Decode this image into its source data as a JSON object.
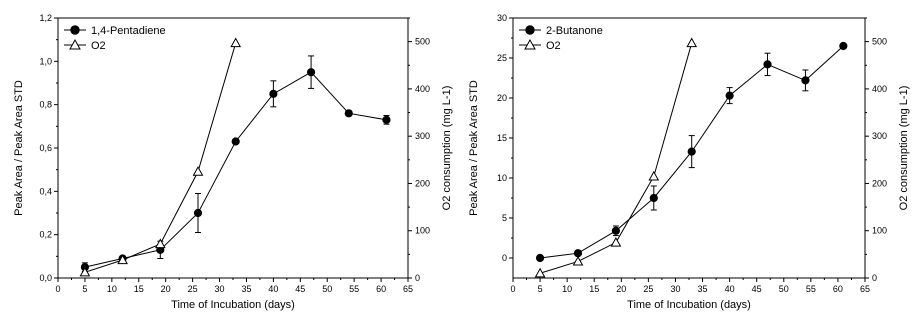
{
  "chart_data": [
    {
      "type": "line",
      "xlabel": "Time of Incubation (days)",
      "ylabel": "Peak Area / Peak Area STD",
      "y2label": "O2 consumption (mg L-1)",
      "xlim": [
        0,
        65
      ],
      "ylim": [
        0,
        1.2
      ],
      "y2lim": [
        0,
        550
      ],
      "x_ticks": [
        "0",
        "5",
        "10",
        "15",
        "20",
        "25",
        "30",
        "35",
        "40",
        "45",
        "50",
        "55",
        "60",
        "65"
      ],
      "y_ticks": [
        "0,0",
        "0,2",
        "0,4",
        "0,6",
        "0,8",
        "1,0",
        "1,2"
      ],
      "y2_ticks": [
        "0",
        "100",
        "200",
        "300",
        "400",
        "500"
      ],
      "legend_position": "top-left",
      "series": [
        {
          "name": "1,4-Pentadiene",
          "marker": "filled-circle",
          "axis": "left",
          "x": [
            5,
            12,
            19,
            26,
            33,
            40,
            47,
            54,
            61
          ],
          "y": [
            0.05,
            0.09,
            0.13,
            0.3,
            0.63,
            0.85,
            0.95,
            0.76,
            0.73
          ],
          "err": [
            0.02,
            0.01,
            0.04,
            0.09,
            0.0,
            0.06,
            0.075,
            0.01,
            0.02
          ]
        },
        {
          "name": "O2",
          "marker": "open-triangle",
          "axis": "right",
          "x": [
            5,
            12,
            19,
            26,
            33
          ],
          "y": [
            12,
            38,
            72,
            225,
            497
          ]
        }
      ]
    },
    {
      "type": "line",
      "xlabel": "Time of Incubation (days)",
      "ylabel": "Peak Area / Peak Area STD",
      "y2label": "O2 consumption (mg L-1)",
      "xlim": [
        0,
        65
      ],
      "ylim": [
        -2.5,
        30
      ],
      "y2lim": [
        0,
        550
      ],
      "x_ticks": [
        "0",
        "5",
        "10",
        "15",
        "20",
        "25",
        "30",
        "35",
        "40",
        "45",
        "50",
        "55",
        "60",
        "65"
      ],
      "y_ticks": [
        "0",
        "5",
        "10",
        "15",
        "20",
        "25",
        "30"
      ],
      "y2_ticks": [
        "0",
        "100",
        "200",
        "300",
        "400",
        "500"
      ],
      "legend_position": "top-left",
      "series": [
        {
          "name": "2-Butanone",
          "marker": "filled-circle",
          "axis": "left",
          "x": [
            5,
            12,
            19,
            26,
            33,
            40,
            47,
            54,
            61
          ],
          "y": [
            0.0,
            0.6,
            3.4,
            7.5,
            13.3,
            20.3,
            24.2,
            22.2,
            26.5
          ],
          "err": [
            0.2,
            0.3,
            0.6,
            1.5,
            2.0,
            1.0,
            1.4,
            1.3,
            0.0
          ]
        },
        {
          "name": "O2",
          "marker": "open-triangle",
          "axis": "right",
          "x": [
            5,
            12,
            19,
            26,
            33
          ],
          "y": [
            10,
            35,
            75,
            215,
            497
          ]
        }
      ]
    }
  ]
}
